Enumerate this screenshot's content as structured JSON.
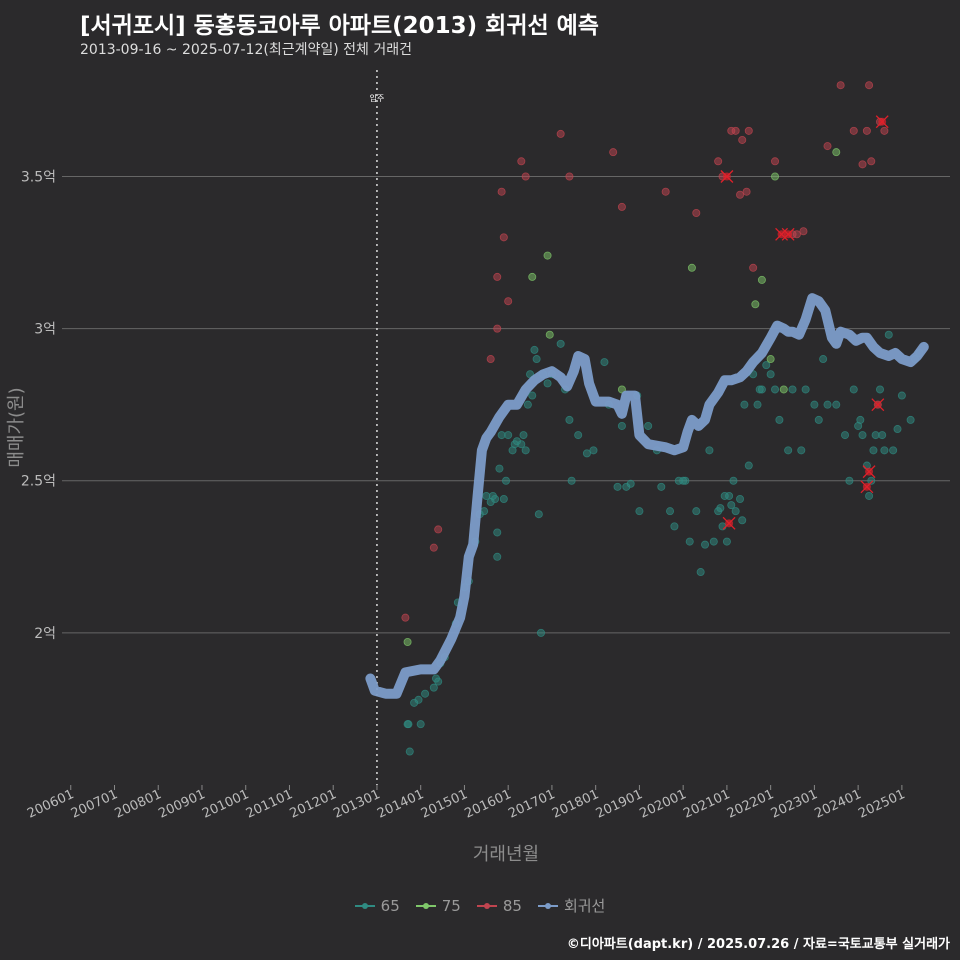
{
  "title": "[서귀포시] 동홍동코아루 아파트(2013) 회귀선 예측",
  "subtitle": "2013-09-16 ~ 2025-07-12(최근계약일) 전체 거래건",
  "caption": "©디아파트(dapt.kr) / 2025.07.26 / 자료=국토교통부 실거래가",
  "colors": {
    "background": "#2b2a2c",
    "grid": "#666666",
    "s65": "#2f8b82",
    "s75": "#7fc76a",
    "s85": "#c0444f",
    "regression": "#7c9cc9",
    "highlight": "#e0202a"
  },
  "legend": [
    {
      "key": "s65",
      "label": "65",
      "color": "#2f8b82"
    },
    {
      "key": "s75",
      "label": "75",
      "color": "#7fc76a"
    },
    {
      "key": "s85",
      "label": "85",
      "color": "#c0444f"
    },
    {
      "key": "reg",
      "label": "회귀선",
      "color": "#7c9cc9"
    }
  ],
  "chart_data": {
    "type": "scatter",
    "title": "[서귀포시] 동홍동코아루 아파트(2013) 회귀선 예측",
    "xlabel": "거래년월",
    "ylabel": "매매가(원)",
    "xlim": [
      2005.8,
      2026.1
    ],
    "ylim": [
      1.5,
      3.85
    ],
    "x_ticks": [
      {
        "value": 2006,
        "label": "200601"
      },
      {
        "value": 2007,
        "label": "200701"
      },
      {
        "value": 2008,
        "label": "200801"
      },
      {
        "value": 2009,
        "label": "200901"
      },
      {
        "value": 2010,
        "label": "201001"
      },
      {
        "value": 2011,
        "label": "201101"
      },
      {
        "value": 2012,
        "label": "201201"
      },
      {
        "value": 2013,
        "label": "201301"
      },
      {
        "value": 2014,
        "label": "201401"
      },
      {
        "value": 2015,
        "label": "201501"
      },
      {
        "value": 2016,
        "label": "201601"
      },
      {
        "value": 2017,
        "label": "201701"
      },
      {
        "value": 2018,
        "label": "201801"
      },
      {
        "value": 2019,
        "label": "201901"
      },
      {
        "value": 2020,
        "label": "202001"
      },
      {
        "value": 2021,
        "label": "202101"
      },
      {
        "value": 2022,
        "label": "202201"
      },
      {
        "value": 2023,
        "label": "202301"
      },
      {
        "value": 2024,
        "label": "202401"
      },
      {
        "value": 2025,
        "label": "202501"
      }
    ],
    "y_ticks": [
      {
        "value": 2.0,
        "label": "2억"
      },
      {
        "value": 2.5,
        "label": "2.5억"
      },
      {
        "value": 3.0,
        "label": "3억"
      },
      {
        "value": 3.5,
        "label": "3.5억"
      }
    ],
    "annotation": {
      "x": 2013.0,
      "label": "입주"
    },
    "series": [
      {
        "name": "65",
        "color_key": "s65",
        "points": [
          [
            2013.7,
            1.7
          ],
          [
            2013.72,
            1.7
          ],
          [
            2013.75,
            1.61
          ],
          [
            2013.85,
            1.77
          ],
          [
            2013.95,
            1.78
          ],
          [
            2014.0,
            1.7
          ],
          [
            2014.1,
            1.8
          ],
          [
            2014.3,
            1.82
          ],
          [
            2014.35,
            1.85
          ],
          [
            2014.4,
            1.84
          ],
          [
            2014.45,
            1.9
          ],
          [
            2014.55,
            1.92
          ],
          [
            2014.8,
            2.03
          ],
          [
            2014.85,
            2.1
          ],
          [
            2015.0,
            2.15
          ],
          [
            2015.1,
            2.17
          ],
          [
            2015.25,
            2.3
          ],
          [
            2015.35,
            2.39
          ],
          [
            2015.45,
            2.4
          ],
          [
            2015.5,
            2.45
          ],
          [
            2015.6,
            2.43
          ],
          [
            2015.65,
            2.45
          ],
          [
            2015.7,
            2.44
          ],
          [
            2015.75,
            2.25
          ],
          [
            2015.75,
            2.33
          ],
          [
            2015.8,
            2.54
          ],
          [
            2015.85,
            2.65
          ],
          [
            2015.9,
            2.44
          ],
          [
            2015.95,
            2.5
          ],
          [
            2016.0,
            2.65
          ],
          [
            2016.1,
            2.6
          ],
          [
            2016.15,
            2.62
          ],
          [
            2016.2,
            2.63
          ],
          [
            2016.3,
            2.62
          ],
          [
            2016.35,
            2.65
          ],
          [
            2016.4,
            2.6
          ],
          [
            2016.45,
            2.75
          ],
          [
            2016.5,
            2.85
          ],
          [
            2016.55,
            2.78
          ],
          [
            2016.6,
            2.93
          ],
          [
            2016.65,
            2.9
          ],
          [
            2016.7,
            2.39
          ],
          [
            2016.75,
            2.0
          ],
          [
            2016.8,
            2.85
          ],
          [
            2016.9,
            2.82
          ],
          [
            2017.0,
            2.85
          ],
          [
            2017.2,
            2.95
          ],
          [
            2017.3,
            2.8
          ],
          [
            2017.4,
            2.7
          ],
          [
            2017.45,
            2.5
          ],
          [
            2017.6,
            2.65
          ],
          [
            2017.8,
            2.59
          ],
          [
            2017.95,
            2.6
          ],
          [
            2018.2,
            2.89
          ],
          [
            2018.3,
            2.75
          ],
          [
            2018.5,
            2.48
          ],
          [
            2018.6,
            2.68
          ],
          [
            2018.7,
            2.48
          ],
          [
            2018.8,
            2.49
          ],
          [
            2018.95,
            2.78
          ],
          [
            2019.0,
            2.4
          ],
          [
            2019.2,
            2.68
          ],
          [
            2019.4,
            2.6
          ],
          [
            2019.5,
            2.48
          ],
          [
            2019.7,
            2.4
          ],
          [
            2019.8,
            2.35
          ],
          [
            2019.9,
            2.5
          ],
          [
            2020.0,
            2.5
          ],
          [
            2020.05,
            2.5
          ],
          [
            2020.15,
            2.3
          ],
          [
            2020.3,
            2.4
          ],
          [
            2020.4,
            2.2
          ],
          [
            2020.5,
            2.29
          ],
          [
            2020.6,
            2.6
          ],
          [
            2020.7,
            2.3
          ],
          [
            2020.8,
            2.4
          ],
          [
            2020.85,
            2.41
          ],
          [
            2020.9,
            2.35
          ],
          [
            2020.95,
            2.45
          ],
          [
            2021.0,
            2.3
          ],
          [
            2021.05,
            2.45
          ],
          [
            2021.1,
            2.42
          ],
          [
            2021.15,
            2.5
          ],
          [
            2021.2,
            2.4
          ],
          [
            2021.3,
            2.44
          ],
          [
            2021.35,
            2.37
          ],
          [
            2021.4,
            2.75
          ],
          [
            2021.5,
            2.55
          ],
          [
            2021.6,
            2.85
          ],
          [
            2021.7,
            2.75
          ],
          [
            2021.75,
            2.8
          ],
          [
            2021.8,
            2.8
          ],
          [
            2021.9,
            2.88
          ],
          [
            2022.0,
            2.85
          ],
          [
            2022.1,
            2.8
          ],
          [
            2022.2,
            2.7
          ],
          [
            2022.4,
            2.6
          ],
          [
            2022.5,
            2.8
          ],
          [
            2022.7,
            2.6
          ],
          [
            2022.8,
            2.8
          ],
          [
            2023.0,
            2.75
          ],
          [
            2023.1,
            2.7
          ],
          [
            2023.2,
            2.9
          ],
          [
            2023.3,
            2.75
          ],
          [
            2023.5,
            2.75
          ],
          [
            2023.7,
            2.65
          ],
          [
            2023.8,
            2.5
          ],
          [
            2023.9,
            2.8
          ],
          [
            2024.0,
            2.68
          ],
          [
            2024.05,
            2.7
          ],
          [
            2024.1,
            2.65
          ],
          [
            2024.2,
            2.55
          ],
          [
            2024.25,
            2.45
          ],
          [
            2024.3,
            2.5
          ],
          [
            2024.35,
            2.6
          ],
          [
            2024.4,
            2.65
          ],
          [
            2024.45,
            2.75
          ],
          [
            2024.5,
            2.8
          ],
          [
            2024.55,
            2.65
          ],
          [
            2024.6,
            2.6
          ],
          [
            2024.7,
            2.98
          ],
          [
            2024.8,
            2.6
          ],
          [
            2024.9,
            2.67
          ],
          [
            2025.0,
            2.78
          ],
          [
            2025.2,
            2.7
          ],
          [
            2025.3,
            2.9
          ],
          [
            2025.4,
            2.92
          ]
        ]
      },
      {
        "name": "75",
        "color_key": "s75",
        "points": [
          [
            2013.7,
            1.97
          ],
          [
            2016.55,
            3.17
          ],
          [
            2016.9,
            3.24
          ],
          [
            2016.95,
            2.98
          ],
          [
            2018.6,
            2.8
          ],
          [
            2020.2,
            3.2
          ],
          [
            2021.65,
            3.08
          ],
          [
            2021.8,
            3.16
          ],
          [
            2022.0,
            2.9
          ],
          [
            2022.1,
            3.5
          ],
          [
            2022.3,
            2.8
          ],
          [
            2023.5,
            3.58
          ]
        ]
      },
      {
        "name": "85",
        "color_key": "s85",
        "points": [
          [
            2013.65,
            2.05
          ],
          [
            2014.3,
            2.28
          ],
          [
            2014.4,
            2.34
          ],
          [
            2015.6,
            2.9
          ],
          [
            2015.75,
            3.0
          ],
          [
            2015.75,
            3.17
          ],
          [
            2015.85,
            3.45
          ],
          [
            2015.9,
            3.3
          ],
          [
            2016.0,
            3.09
          ],
          [
            2016.3,
            3.55
          ],
          [
            2016.4,
            3.5
          ],
          [
            2017.2,
            3.64
          ],
          [
            2017.4,
            3.5
          ],
          [
            2018.4,
            3.58
          ],
          [
            2018.6,
            3.4
          ],
          [
            2019.6,
            3.45
          ],
          [
            2020.3,
            3.38
          ],
          [
            2020.8,
            3.55
          ],
          [
            2020.9,
            3.5
          ],
          [
            2021.1,
            3.65
          ],
          [
            2021.2,
            3.65
          ],
          [
            2021.3,
            3.44
          ],
          [
            2021.35,
            3.62
          ],
          [
            2021.45,
            3.45
          ],
          [
            2021.5,
            3.65
          ],
          [
            2021.6,
            3.2
          ],
          [
            2022.1,
            3.55
          ],
          [
            2022.5,
            3.31
          ],
          [
            2022.6,
            3.31
          ],
          [
            2022.75,
            3.32
          ],
          [
            2023.3,
            3.6
          ],
          [
            2023.6,
            3.8
          ],
          [
            2023.9,
            3.65
          ],
          [
            2024.1,
            3.54
          ],
          [
            2024.2,
            3.65
          ],
          [
            2024.25,
            3.8
          ],
          [
            2024.3,
            3.55
          ],
          [
            2024.5,
            3.68
          ],
          [
            2024.6,
            3.65
          ]
        ]
      }
    ],
    "highlighted": [
      [
        2021.0,
        3.5
      ],
      [
        2021.05,
        2.36
      ],
      [
        2022.25,
        3.31
      ],
      [
        2022.4,
        3.31
      ],
      [
        2024.2,
        2.48
      ],
      [
        2024.25,
        2.53
      ],
      [
        2024.45,
        2.75
      ],
      [
        2024.55,
        3.68
      ]
    ],
    "regression": {
      "name": "회귀선",
      "points": [
        [
          2012.85,
          1.85
        ],
        [
          2012.95,
          1.81
        ],
        [
          2013.2,
          1.8
        ],
        [
          2013.45,
          1.8
        ],
        [
          2013.65,
          1.87
        ],
        [
          2014.0,
          1.88
        ],
        [
          2014.3,
          1.88
        ],
        [
          2014.45,
          1.91
        ],
        [
          2014.7,
          1.98
        ],
        [
          2014.9,
          2.05
        ],
        [
          2015.0,
          2.12
        ],
        [
          2015.1,
          2.25
        ],
        [
          2015.2,
          2.29
        ],
        [
          2015.3,
          2.45
        ],
        [
          2015.4,
          2.6
        ],
        [
          2015.5,
          2.64
        ],
        [
          2015.6,
          2.66
        ],
        [
          2015.8,
          2.71
        ],
        [
          2016.0,
          2.75
        ],
        [
          2016.2,
          2.75
        ],
        [
          2016.4,
          2.8
        ],
        [
          2016.6,
          2.83
        ],
        [
          2016.8,
          2.85
        ],
        [
          2017.0,
          2.86
        ],
        [
          2017.2,
          2.84
        ],
        [
          2017.35,
          2.81
        ],
        [
          2017.5,
          2.86
        ],
        [
          2017.6,
          2.91
        ],
        [
          2017.75,
          2.9
        ],
        [
          2017.85,
          2.82
        ],
        [
          2018.0,
          2.76
        ],
        [
          2018.3,
          2.76
        ],
        [
          2018.5,
          2.75
        ],
        [
          2018.6,
          2.72
        ],
        [
          2018.7,
          2.78
        ],
        [
          2018.9,
          2.78
        ],
        [
          2019.0,
          2.65
        ],
        [
          2019.2,
          2.62
        ],
        [
          2019.6,
          2.61
        ],
        [
          2019.8,
          2.6
        ],
        [
          2020.0,
          2.61
        ],
        [
          2020.1,
          2.66
        ],
        [
          2020.2,
          2.7
        ],
        [
          2020.35,
          2.68
        ],
        [
          2020.5,
          2.7
        ],
        [
          2020.6,
          2.75
        ],
        [
          2020.8,
          2.79
        ],
        [
          2020.95,
          2.83
        ],
        [
          2021.1,
          2.83
        ],
        [
          2021.3,
          2.84
        ],
        [
          2021.45,
          2.86
        ],
        [
          2021.6,
          2.89
        ],
        [
          2021.8,
          2.92
        ],
        [
          2022.0,
          2.97
        ],
        [
          2022.15,
          3.01
        ],
        [
          2022.3,
          3.0
        ],
        [
          2022.4,
          2.99
        ],
        [
          2022.5,
          2.99
        ],
        [
          2022.65,
          2.98
        ],
        [
          2022.8,
          3.03
        ],
        [
          2022.95,
          3.1
        ],
        [
          2023.1,
          3.09
        ],
        [
          2023.25,
          3.06
        ],
        [
          2023.4,
          2.97
        ],
        [
          2023.5,
          2.95
        ],
        [
          2023.6,
          2.99
        ],
        [
          2023.8,
          2.98
        ],
        [
          2023.95,
          2.96
        ],
        [
          2024.1,
          2.97
        ],
        [
          2024.2,
          2.97
        ],
        [
          2024.35,
          2.94
        ],
        [
          2024.5,
          2.92
        ],
        [
          2024.7,
          2.91
        ],
        [
          2024.85,
          2.92
        ],
        [
          2025.0,
          2.9
        ],
        [
          2025.2,
          2.89
        ],
        [
          2025.35,
          2.91
        ],
        [
          2025.5,
          2.94
        ]
      ]
    }
  }
}
